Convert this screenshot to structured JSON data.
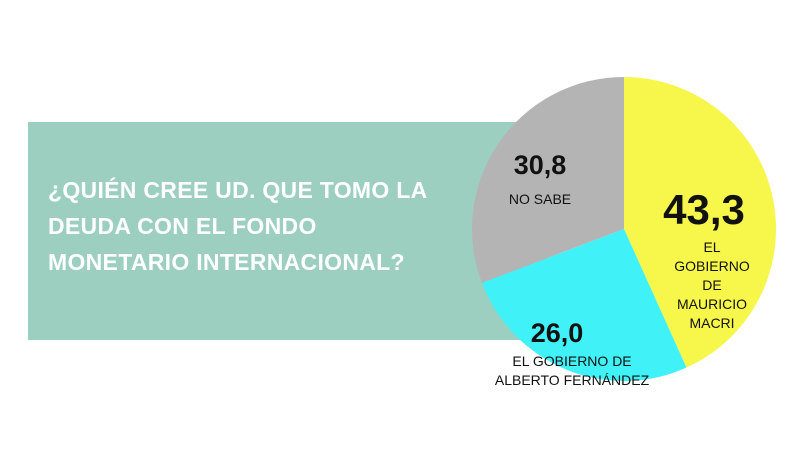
{
  "chart_data": {
    "type": "pie",
    "title": "¿QUIÉN CREE UD. QUE TOMO LA DEUDA CON EL FONDO MONETARIO INTERNACIONAL?",
    "categories": [
      "EL GOBIERNO DE\nMAURICIO MACRI",
      "EL GOBIERNO DE\nALBERTO FERNÁNDEZ",
      "NO SABE"
    ],
    "values": [
      43.3,
      26.0,
      30.8
    ],
    "value_labels": [
      "43,3",
      "26,0",
      "30,8"
    ],
    "colors": [
      "#f6f74a",
      "#41f1f8",
      "#b4b4b4"
    ]
  }
}
